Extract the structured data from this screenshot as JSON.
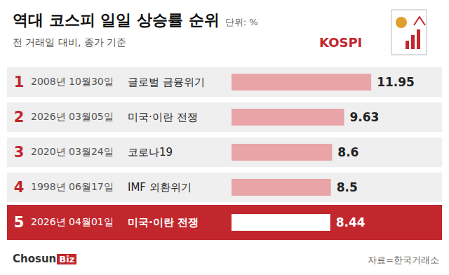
{
  "chart_data": {
    "type": "bar",
    "orientation": "horizontal",
    "title": "역대 코스피 일일 상승률 순위",
    "unit": "단위: %",
    "subtitle": "전 거래일 대비, 종가 기준",
    "ranks": [
      1,
      2,
      3,
      4,
      5
    ],
    "categories": [
      "2008년 10월30일",
      "2026년 03월05일",
      "2020년 03월24일",
      "1998년 06월17일",
      "2026년 04월01일"
    ],
    "events": [
      "글로벌 금융위기",
      "미국·이란 전쟁",
      "코로나19",
      "IMF 외환위기",
      "미국·이란 전쟁"
    ],
    "values": [
      11.95,
      9.63,
      8.6,
      8.5,
      8.44
    ],
    "colors": [
      "#e8a4a6",
      "#e8a4a6",
      "#e8a4a6",
      "#e8a4a6",
      "#ffffff"
    ],
    "xlim": [
      0,
      12
    ],
    "tick_labels": false,
    "data_labels": true,
    "grid": false,
    "icon_text": "KOSPI",
    "brand": [
      "Chosun",
      "Biz"
    ],
    "source": "자료=한국거래소"
  }
}
